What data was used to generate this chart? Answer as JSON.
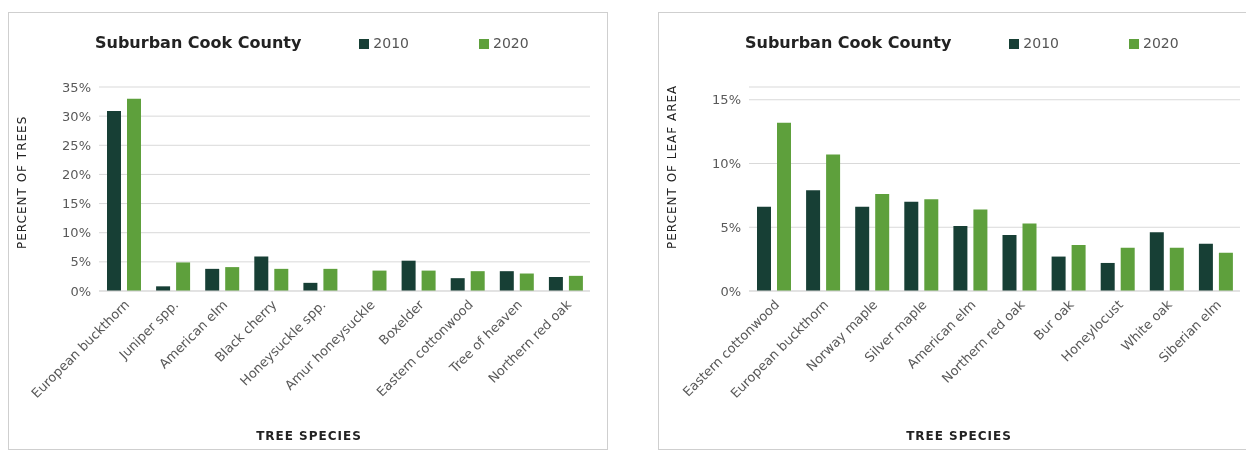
{
  "chart_data": [
    {
      "type": "bar",
      "title": "Suburban Cook County",
      "xlabel": "TREE SPECIES",
      "ylabel": "PERCENT OF TREES",
      "categories": [
        "European buckthorn",
        "Juniper spp.",
        "American elm",
        "Black cherry",
        "Honeysuckle spp.",
        "Amur honeysuckle",
        "Boxelder",
        "Eastern cottonwood",
        "Tree of heaven",
        "Northern red oak"
      ],
      "series": [
        {
          "name": "2010",
          "color": "#173f35",
          "values": [
            30.9,
            0.8,
            3.8,
            5.9,
            1.4,
            null,
            5.2,
            2.2,
            3.4,
            2.4
          ]
        },
        {
          "name": "2020",
          "color": "#5ea03c",
          "values": [
            33.0,
            4.9,
            4.1,
            3.8,
            3.8,
            3.5,
            3.5,
            3.4,
            3.0,
            2.6
          ]
        }
      ],
      "ylim": [
        0,
        35
      ],
      "yticks": [
        {
          "value": 0,
          "label": "0%"
        },
        {
          "value": 5,
          "label": "5%"
        },
        {
          "value": 10,
          "label": "10%"
        },
        {
          "value": 15,
          "label": "15%"
        },
        {
          "value": 20,
          "label": "20%"
        },
        {
          "value": 25,
          "label": "25%"
        },
        {
          "value": 30,
          "label": "30%"
        },
        {
          "value": 35,
          "label": "35%"
        }
      ],
      "grid": "y",
      "legend": "top"
    },
    {
      "type": "bar",
      "title": "Suburban Cook County",
      "xlabel": "TREE SPECIES",
      "ylabel": "PERCENT OF LEAF AREA",
      "categories": [
        "Eastern cottonwood",
        "European buckthorn",
        "Norway maple",
        "Silver maple",
        "American elm",
        "Northern red oak",
        "Bur oak",
        "Honeylocust",
        "White oak",
        "Siberian elm"
      ],
      "series": [
        {
          "name": "2010",
          "color": "#173f35",
          "values": [
            6.6,
            7.9,
            6.6,
            7.0,
            5.1,
            4.4,
            2.7,
            2.2,
            4.6,
            3.7
          ]
        },
        {
          "name": "2020",
          "color": "#5ea03c",
          "values": [
            13.2,
            10.7,
            7.6,
            7.2,
            6.4,
            5.3,
            3.6,
            3.4,
            3.4,
            3.0
          ]
        }
      ],
      "ylim": [
        0,
        16
      ],
      "yticks": [
        {
          "value": 0,
          "label": "0%"
        },
        {
          "value": 5,
          "label": "5%"
        },
        {
          "value": 10,
          "label": "10%"
        },
        {
          "value": 15,
          "label": "15%"
        }
      ],
      "grid": "y",
      "legend": "top"
    }
  ]
}
